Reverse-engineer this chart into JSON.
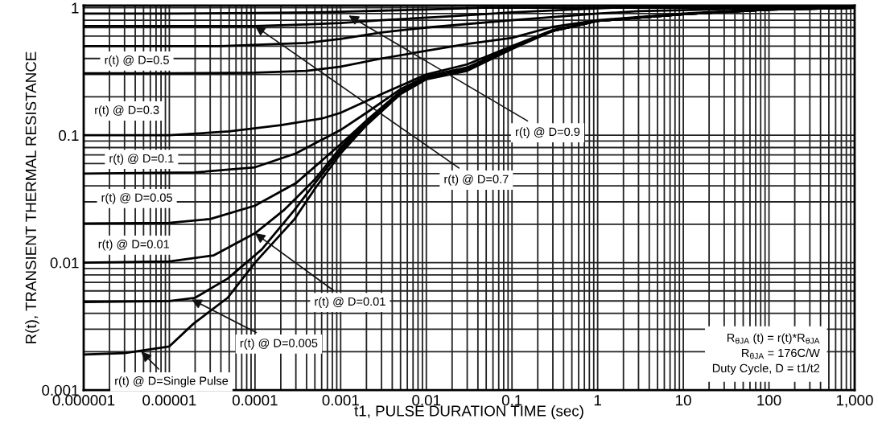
{
  "chart_data": {
    "type": "line",
    "xlabel": "t1, PULSE DURATION TIME (sec)",
    "ylabel": "R(t), TRANSIENT THERMAL RESISTANCE",
    "log": "xy",
    "grid": true,
    "line_style": "solid",
    "marker": "none",
    "xlim": [
      1e-06,
      1000
    ],
    "ylim": [
      0.001,
      1.04
    ],
    "xticks": [
      {
        "value": 1e-06,
        "label": "0.000001"
      },
      {
        "value": 1e-05,
        "label": "0.00001"
      },
      {
        "value": 0.0001,
        "label": "0.0001"
      },
      0.001,
      0.01,
      0.1,
      1,
      10,
      100,
      {
        "value": 1000,
        "label": "1,000"
      }
    ],
    "yticks": [
      0.001,
      0.01,
      0.1,
      1
    ],
    "series": [
      {
        "color": "#000000",
        "x": [
          1e-06,
          1e-05,
          0.0001,
          0.0005,
          0.001,
          0.003,
          0.01,
          0.046,
          0.2,
          1000
        ],
        "values": [
          0.9,
          0.9,
          0.91,
          0.92,
          0.93,
          0.95,
          0.97,
          1.0,
          1.0,
          1.0
        ]
      },
      {
        "color": "#000000",
        "x": [
          1e-06,
          1e-05,
          0.0001,
          0.0004,
          0.001,
          0.003,
          0.02,
          0.1,
          0.5,
          1.5,
          1000
        ],
        "values": [
          0.72,
          0.72,
          0.72,
          0.74,
          0.76,
          0.8,
          0.86,
          0.92,
          0.97,
          1.0,
          1.0
        ]
      },
      {
        "color": "#000000",
        "x": [
          1e-06,
          1e-05,
          4e-05,
          0.0004,
          0.001,
          0.003,
          0.01,
          0.1,
          1,
          3,
          20,
          100,
          1000
        ],
        "values": [
          0.5,
          0.5,
          0.5,
          0.53,
          0.57,
          0.64,
          0.7,
          0.8,
          0.9,
          0.94,
          0.97,
          1.0,
          1.0
        ]
      },
      {
        "color": "#000000",
        "x": [
          1e-06,
          1e-05,
          0.0001,
          0.0004,
          0.001,
          0.003,
          0.01,
          0.03,
          0.1,
          0.3,
          1,
          10,
          100,
          1000
        ],
        "values": [
          0.306,
          0.306,
          0.31,
          0.32,
          0.345,
          0.4,
          0.46,
          0.52,
          0.58,
          0.71,
          0.8,
          0.9,
          0.98,
          1.0
        ]
      },
      {
        "color": "#000000",
        "x": [
          1e-06,
          1e-05,
          5e-05,
          0.0002,
          0.0006,
          0.001,
          0.003,
          0.01,
          0.03,
          0.1,
          0.3,
          1,
          10,
          100,
          1000
        ],
        "values": [
          0.1,
          0.1,
          0.107,
          0.12,
          0.135,
          0.15,
          0.21,
          0.3,
          0.36,
          0.5,
          0.67,
          0.79,
          0.89,
          0.97,
          1.0
        ]
      },
      {
        "color": "#000000",
        "x": [
          1e-06,
          2e-05,
          0.0001,
          0.0003,
          0.001,
          0.002,
          0.005,
          0.01,
          0.03,
          0.1,
          0.3,
          1,
          10,
          100,
          1000
        ],
        "values": [
          0.05,
          0.051,
          0.056,
          0.072,
          0.11,
          0.15,
          0.23,
          0.29,
          0.34,
          0.49,
          0.66,
          0.79,
          0.89,
          0.97,
          1.0
        ]
      },
      {
        "color": "#000000",
        "x": [
          1e-06,
          1e-05,
          3e-05,
          0.0001,
          0.0003,
          0.001,
          0.002,
          0.005,
          0.01,
          0.03,
          0.1,
          0.3,
          1,
          10,
          100,
          1000
        ],
        "values": [
          0.0203,
          0.0205,
          0.022,
          0.028,
          0.042,
          0.085,
          0.13,
          0.22,
          0.285,
          0.335,
          0.485,
          0.66,
          0.79,
          0.89,
          0.97,
          1.0
        ]
      },
      {
        "color": "#000000",
        "x": [
          1e-06,
          1e-05,
          3.3e-05,
          0.0001,
          0.00022,
          0.0005,
          0.001,
          0.002,
          0.005,
          0.01,
          0.03,
          0.1,
          0.3,
          1,
          10,
          100,
          1000
        ],
        "values": [
          0.01,
          0.0102,
          0.0114,
          0.017,
          0.026,
          0.045,
          0.08,
          0.13,
          0.22,
          0.28,
          0.33,
          0.48,
          0.66,
          0.79,
          0.89,
          0.97,
          1.0
        ]
      },
      {
        "color": "#000000",
        "x": [
          1e-06,
          1e-05,
          2e-05,
          4.8e-05,
          0.00012,
          0.00029,
          0.0005,
          0.001,
          0.002,
          0.005,
          0.01,
          0.03,
          0.1,
          0.3,
          1,
          10,
          100,
          1000
        ],
        "values": [
          0.0049,
          0.005,
          0.0053,
          0.0075,
          0.0127,
          0.026,
          0.042,
          0.076,
          0.125,
          0.215,
          0.28,
          0.325,
          0.48,
          0.66,
          0.79,
          0.89,
          0.97,
          1.0
        ]
      },
      {
        "color": "#000000",
        "x": [
          1e-06,
          3e-06,
          1e-05,
          1.9e-05,
          4.8e-05,
          0.0001,
          0.00029,
          0.0005,
          0.001,
          0.002,
          0.005,
          0.01,
          0.03,
          0.1,
          0.3,
          1,
          10,
          100,
          1000
        ],
        "values": [
          0.0019,
          0.00195,
          0.0022,
          0.0033,
          0.0053,
          0.01,
          0.022,
          0.038,
          0.072,
          0.12,
          0.21,
          0.275,
          0.32,
          0.475,
          0.66,
          0.79,
          0.89,
          0.97,
          1.0
        ]
      }
    ],
    "annotations": [
      "r(t) @ D=0.5",
      "r(t) @ D=0.3",
      "r(t) @ D=0.1",
      "r(t) @ D=0.05",
      "r(t) @ D=0.01",
      {
        "text": "r(t) @ D=0.9",
        "x": 0.00124,
        "y": 0.87
      },
      {
        "text": "r(t) @ D=0.7",
        "x": 0.0001,
        "y": 0.72
      },
      {
        "text": "r(t) @ D=0.01",
        "x": 0.0001,
        "y": 0.017
      },
      {
        "text": "r(t) @ D=0.005",
        "x": 1.82e-05,
        "y": 0.00514
      },
      {
        "text": "r(t) @ D=Single Pulse",
        "x": 4.7e-06,
        "y": 0.002
      },
      "R$_{θJA}$ (t) = r(t)*R$_{θJA}$\nR$_{θJA}$ = 176C/W\nDuty Cycle, D = t1/t2"
    ]
  }
}
